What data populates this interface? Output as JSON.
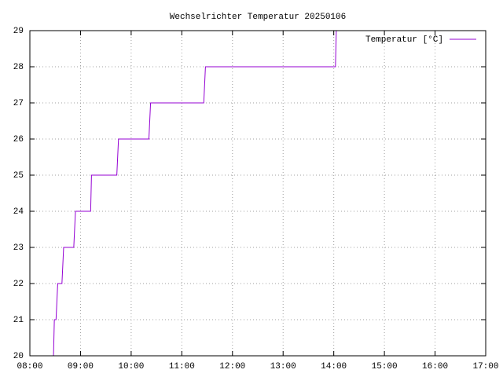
{
  "chart_data": {
    "type": "line",
    "title": "Wechselrichter Temperatur 20250106",
    "x": [
      "08:28",
      "08:29",
      "08:31",
      "08:33",
      "08:38",
      "08:40",
      "08:52",
      "08:54",
      "09:12",
      "09:13",
      "09:43",
      "09:45",
      "10:21",
      "10:23",
      "11:26",
      "11:28",
      "14:02",
      "14:03"
    ],
    "series": [
      {
        "name": "Temperatur [°C]",
        "color": "#9400d3",
        "values": [
          20,
          21,
          21,
          22,
          22,
          23,
          23,
          24,
          24,
          25,
          25,
          26,
          26,
          27,
          27,
          28,
          28,
          29
        ]
      }
    ],
    "xlim": [
      "08:00",
      "17:00"
    ],
    "xticks": [
      "08:00",
      "09:00",
      "10:00",
      "11:00",
      "12:00",
      "13:00",
      "14:00",
      "15:00",
      "16:00",
      "17:00"
    ],
    "ylim": [
      20,
      29
    ],
    "yticks": [
      20,
      21,
      22,
      23,
      24,
      25,
      26,
      27,
      28,
      29
    ],
    "grid": true,
    "legend": "top-right"
  }
}
